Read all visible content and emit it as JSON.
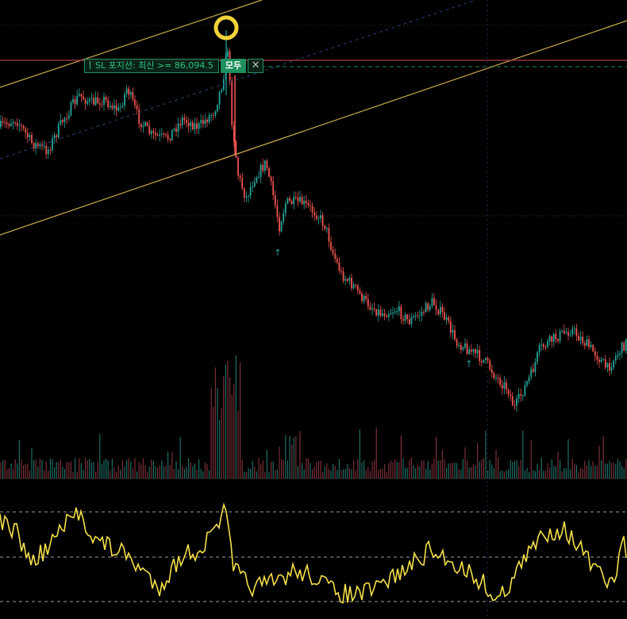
{
  "colors": {
    "background": "#000000",
    "up": "#26a69a",
    "down": "#ef5350",
    "volume_up": "#1f6f66",
    "volume_down": "#7a2f38",
    "trendline": "#c9a84a",
    "sl_line": "#b03a48",
    "horizontal_dashed": "#2ec27e",
    "oscillator": "#f5e04a",
    "grid": "#1a1a1a"
  },
  "sl_order": {
    "label": "SL 포지션: 최신 >= 86,094.5",
    "action_label": "모두",
    "close_icon": "close-icon"
  },
  "markers": {
    "entry_marker_icon": "yellow-ring-icon",
    "arrow_icon": "up-arrow-icon"
  },
  "chart_data": {
    "type": "candlestick",
    "panes": [
      "price",
      "volume",
      "oscillator"
    ],
    "price_levels": [
      86094.5
    ],
    "grid": true,
    "oscillator_levels": [
      "upper",
      "middle",
      "lower"
    ]
  }
}
